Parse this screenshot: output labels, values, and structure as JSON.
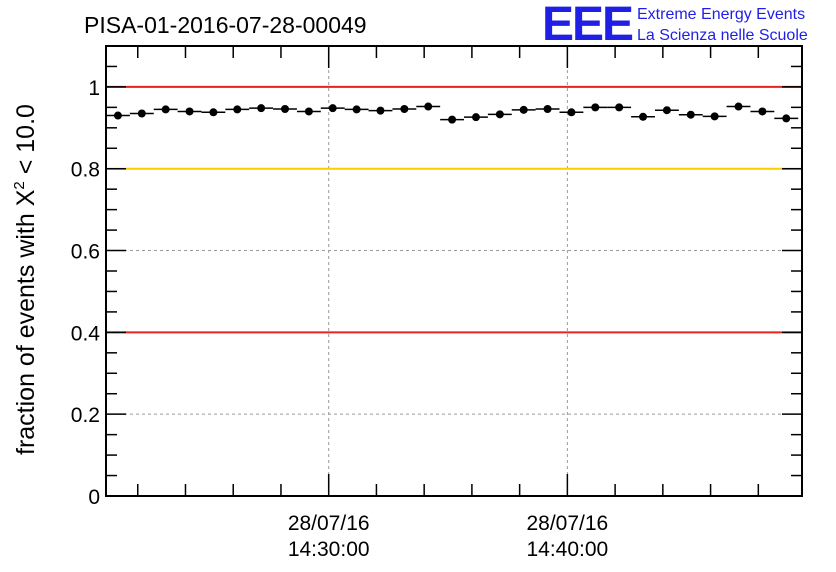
{
  "chart_data": {
    "type": "scatter",
    "title": "PISA-01-2016-07-28-00049",
    "ylabel_prefix": "fraction of events with ",
    "ylabel_symbol": "X",
    "ylabel_superscript": "2",
    "ylabel_suffix": " < 10.0",
    "xlabel": "",
    "xlim_minutes": [
      -9.33,
      19.83
    ],
    "ylim": [
      0,
      1.1
    ],
    "y_ticks": [
      0,
      0.2,
      0.4,
      0.6,
      0.8,
      1
    ],
    "y_tick_labels": [
      "0",
      "0.2",
      "0.4",
      "0.6",
      "0.8",
      "1"
    ],
    "x_ticks": [
      {
        "minutes": 0,
        "date": "28/07/16",
        "time": "14:30:00"
      },
      {
        "minutes": 10,
        "date": "28/07/16",
        "time": "14:40:00"
      }
    ],
    "grid": true,
    "bin_width_minutes": 1,
    "series": [
      {
        "name": "fraction",
        "x_minutes": [
          -8.83,
          -7.83,
          -6.83,
          -5.83,
          -4.83,
          -3.83,
          -2.83,
          -1.83,
          -0.83,
          0.17,
          1.17,
          2.17,
          3.17,
          4.17,
          5.17,
          6.17,
          7.17,
          8.17,
          9.17,
          10.17,
          11.17,
          12.17,
          13.17,
          14.17,
          15.17,
          16.17,
          17.17,
          18.17,
          19.17
        ],
        "values": [
          0.93,
          0.935,
          0.945,
          0.94,
          0.938,
          0.945,
          0.948,
          0.946,
          0.94,
          0.948,
          0.945,
          0.942,
          0.946,
          0.952,
          0.92,
          0.926,
          0.933,
          0.944,
          0.946,
          0.938,
          0.95,
          0.95,
          0.927,
          0.943,
          0.932,
          0.928,
          0.952,
          0.94,
          0.923
        ]
      }
    ],
    "reference_lines": [
      {
        "y": 1.0,
        "color": "#e8231d"
      },
      {
        "y": 0.8,
        "color": "#ffcc00"
      },
      {
        "y": 0.4,
        "color": "#e8231d"
      }
    ]
  },
  "logo": {
    "letters": "EEE",
    "line1": "Extreme Energy Events",
    "line2": "La Scienza nelle Scuole",
    "color": "#1f1fe6"
  }
}
